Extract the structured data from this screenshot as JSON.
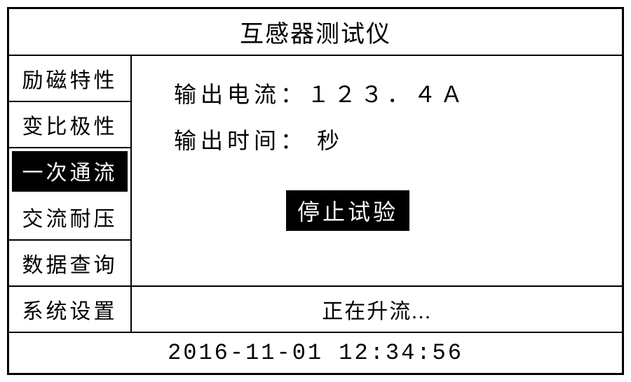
{
  "header": {
    "title": "互感器测试仪"
  },
  "sidebar": {
    "items": [
      {
        "label": "励磁特性",
        "selected": false
      },
      {
        "label": "变比极性",
        "selected": false
      },
      {
        "label": "一次通流",
        "selected": true
      },
      {
        "label": "交流耐压",
        "selected": false
      },
      {
        "label": "数据查询",
        "selected": false
      }
    ]
  },
  "content": {
    "output_current_label": "输出电流：",
    "output_current_value": "１２３．４Ａ",
    "output_time_label": "输出时间：",
    "output_time_value": "",
    "output_time_unit": "     秒",
    "stop_button_label": "停止试验"
  },
  "footer": {
    "settings_label": "系统设置",
    "status_text": "正在升流..."
  },
  "datetime": {
    "value": "2016-11-01 12:34:56"
  },
  "style": {
    "border_color": "#000000",
    "background_color": "#ffffff",
    "selected_bg": "#000000",
    "selected_fg": "#ffffff",
    "font_family": "SimSun"
  }
}
